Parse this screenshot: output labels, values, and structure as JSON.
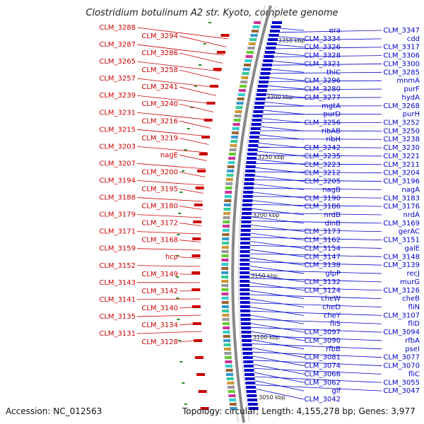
{
  "title": "Clostridium botulinum A2 str. Kyoto, complete genome",
  "footer": {
    "accession": "Accession: NC_012563",
    "topology": "Topology: circular; Length: 4,155,278 bp; Genes: 3,977"
  },
  "colors": {
    "reverse_strand": "#cc0000",
    "forward_strand": "#0000cc",
    "backbone": "#888888"
  },
  "kbp_ticks": [
    "3350 kbp",
    "3300 kbp",
    "3250 kbp",
    "3200 kbp",
    "3150 kbp",
    "3100 kbp",
    "3050 kbp"
  ],
  "reverse_genes": [
    "CLM_3288",
    "CLM_3294",
    "CLM_3287",
    "CLM_3286",
    "CLM_3265",
    "CLM_3258",
    "CLM_3257",
    "CLM_3241",
    "CLM_3239",
    "CLM_3240",
    "CLM_3231",
    "CLM_3216",
    "CLM_3215",
    "CLM_3219",
    "CLM_3203",
    "nagE",
    "CLM_3207",
    "CLM_3200",
    "CLM_3194",
    "CLM_3195",
    "CLM_3188",
    "CLM_3180",
    "CLM_3179",
    "CLM_3172",
    "CLM_3171",
    "CLM_3168",
    "CLM_3159",
    "hcp",
    "CLM_3152",
    "CLM_3149",
    "CLM_3143",
    "CLM_3142",
    "CLM_3141",
    "CLM_3140",
    "CLM_3135",
    "CLM_3134",
    "CLM_3131",
    "CLM_3128"
  ],
  "forward_genes": [
    "era",
    "CLM_3347",
    "CLM_3334",
    "cdd",
    "CLM_3326",
    "CLM_3317",
    "CLM_3328",
    "CLM_3306",
    "CLM_3321",
    "CLM_3300",
    "thiC",
    "CLM_3285",
    "CLM_3296",
    "mnmA",
    "CLM_3280",
    "purF",
    "CLM_3277",
    "hydA",
    "mgtA",
    "CLM_3268",
    "purD",
    "purH",
    "CLM_3256",
    "CLM_3252",
    "ribAB",
    "CLM_3250",
    "ribH",
    "CLM_3238",
    "CLM_3242",
    "CLM_3230",
    "CLM_3235",
    "CLM_3221",
    "CLM_3223",
    "CLM_3211",
    "CLM_3212",
    "CLM_3204",
    "CLM_3205",
    "CLM_3196",
    "nagB",
    "nagA",
    "CLM_3190",
    "CLM_3183",
    "CLM_3186",
    "CLM_3176",
    "nrdB",
    "nrdA",
    "dinB",
    "CLM_3169",
    "CLM_3173",
    "gerAC",
    "CLM_3162",
    "CLM_3151",
    "CLM_3154",
    "galE",
    "CLM_3147",
    "CLM_3148",
    "CLM_3138",
    "CLM_3139",
    "glpP",
    "recJ",
    "CLM_3132",
    "murG",
    "CLM_3124",
    "CLM_3126",
    "cheW",
    "cheB",
    "cheD",
    "fliN",
    "cheY",
    "CLM_3107",
    "fliS",
    "fliD",
    "CLM_3097",
    "CLM_3094",
    "CLM_3090",
    "rfbA",
    "rfbB",
    "pseI",
    "CLM_3081",
    "CLM_3077",
    "CLM_3074",
    "CLM_3070",
    "CLM_3066",
    "fliC",
    "CLM_3062",
    "CLM_3055",
    "glf",
    "CLM_3047",
    "CLM_3042"
  ]
}
